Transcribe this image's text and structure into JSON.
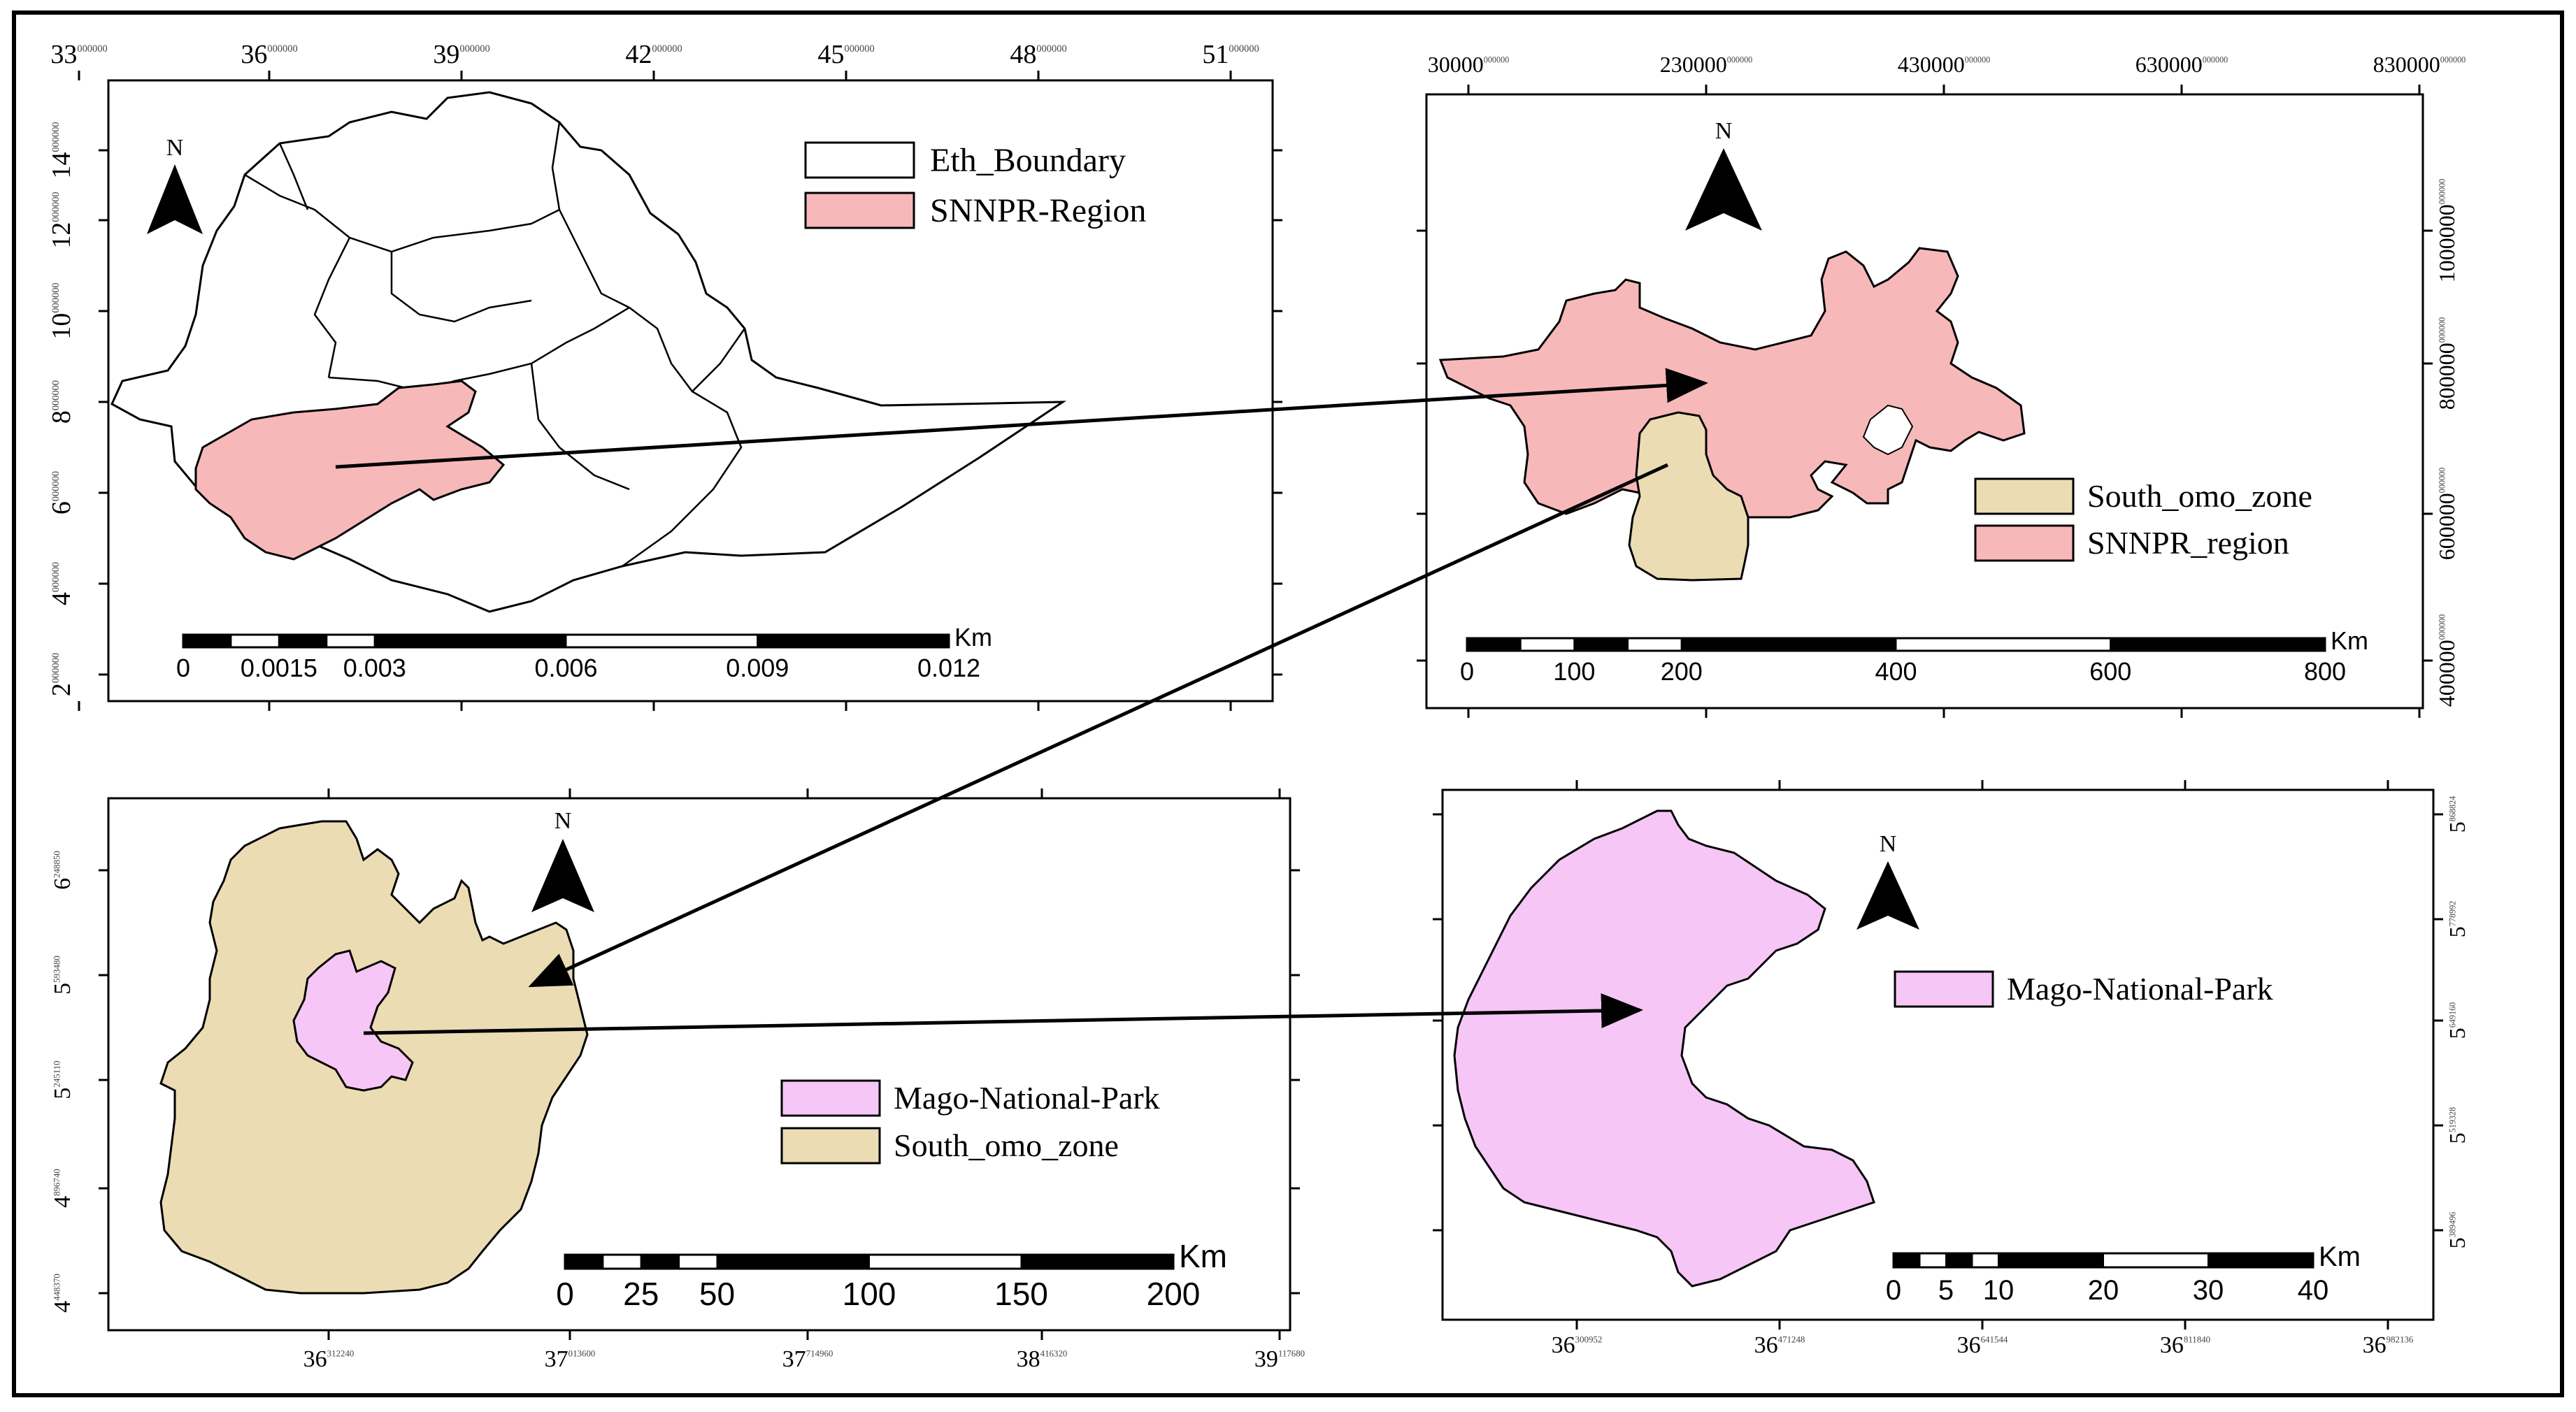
{
  "colors": {
    "eth_boundary_fill": "#ffffff",
    "snnpr_fill": "#f7b8ba",
    "south_omo_fill": "#ebdcb4",
    "mago_fill": "#f6c6f6",
    "outline": "#000000"
  },
  "panels": {
    "top_left": {
      "legend": [
        "Eth_Boundary",
        "SNNPR-Region"
      ],
      "north_label": "N",
      "scale_unit": "Km",
      "scale_labels": [
        "0",
        "0.0015",
        "0.003",
        "0.006",
        "0.009",
        "0.012"
      ],
      "x_ticks": [
        {
          "main": "33",
          "sup": "000000"
        },
        {
          "main": "36",
          "sup": "000000"
        },
        {
          "main": "39",
          "sup": "000000"
        },
        {
          "main": "42",
          "sup": "000000"
        },
        {
          "main": "45",
          "sup": "000000"
        },
        {
          "main": "48",
          "sup": "000000"
        },
        {
          "main": "51",
          "sup": "000000"
        }
      ],
      "y_ticks": [
        {
          "main": "14",
          "sup": "000000"
        },
        {
          "main": "12",
          "sup": "000000"
        },
        {
          "main": "10",
          "sup": "000000"
        },
        {
          "main": "8",
          "sup": "000000"
        },
        {
          "main": "6",
          "sup": "000000"
        },
        {
          "main": "4",
          "sup": "000000"
        },
        {
          "main": "2",
          "sup": "000000"
        }
      ]
    },
    "top_right": {
      "legend": [
        "South_omo_zone",
        "SNNPR_region"
      ],
      "north_label": "N",
      "scale_unit": "Km",
      "scale_labels": [
        "0",
        "100",
        "200",
        "400",
        "600",
        "800"
      ],
      "x_ticks": [
        {
          "main": "30000",
          "sup": "000000"
        },
        {
          "main": "230000",
          "sup": "000000"
        },
        {
          "main": "430000",
          "sup": "000000"
        },
        {
          "main": "630000",
          "sup": "000000"
        },
        {
          "main": "830000",
          "sup": "000000"
        }
      ],
      "y_ticks": [
        {
          "main": "1000000",
          "sup": "000000"
        },
        {
          "main": "800000",
          "sup": "000000"
        },
        {
          "main": "600000",
          "sup": "000000"
        },
        {
          "main": "400000",
          "sup": "000000"
        }
      ]
    },
    "bottom_left": {
      "legend": [
        "Mago-National-Park",
        "South_omo_zone"
      ],
      "north_label": "N",
      "scale_unit": "Km",
      "scale_labels": [
        "0",
        "25",
        "50",
        "100",
        "150",
        "200"
      ],
      "x_ticks": [
        {
          "main": "36",
          "sup": "312240"
        },
        {
          "main": "37",
          "sup": "013600"
        },
        {
          "main": "37",
          "sup": "714960"
        },
        {
          "main": "38",
          "sup": "416320"
        },
        {
          "main": "39",
          "sup": "117680"
        }
      ],
      "y_ticks": [
        {
          "main": "6",
          "sup": "248850"
        },
        {
          "main": "5",
          "sup": "593480"
        },
        {
          "main": "5",
          "sup": "245110"
        },
        {
          "main": "4",
          "sup": "896740"
        },
        {
          "main": "4",
          "sup": "448370"
        }
      ]
    },
    "bottom_right": {
      "legend": [
        "Mago-National-Park"
      ],
      "north_label": "N",
      "scale_unit": "Km",
      "scale_labels": [
        "0",
        "5",
        "10",
        "20",
        "30",
        "40"
      ],
      "x_ticks": [
        {
          "main": "36",
          "sup": "300952"
        },
        {
          "main": "36",
          "sup": "471248"
        },
        {
          "main": "36",
          "sup": "641544"
        },
        {
          "main": "36",
          "sup": "811840"
        },
        {
          "main": "36",
          "sup": "982136"
        }
      ],
      "y_ticks": [
        {
          "main": "5",
          "sup": "868824"
        },
        {
          "main": "5",
          "sup": "778992"
        },
        {
          "main": "5",
          "sup": "649160"
        },
        {
          "main": "5",
          "sup": "519328"
        },
        {
          "main": "5",
          "sup": "389496"
        }
      ]
    }
  }
}
